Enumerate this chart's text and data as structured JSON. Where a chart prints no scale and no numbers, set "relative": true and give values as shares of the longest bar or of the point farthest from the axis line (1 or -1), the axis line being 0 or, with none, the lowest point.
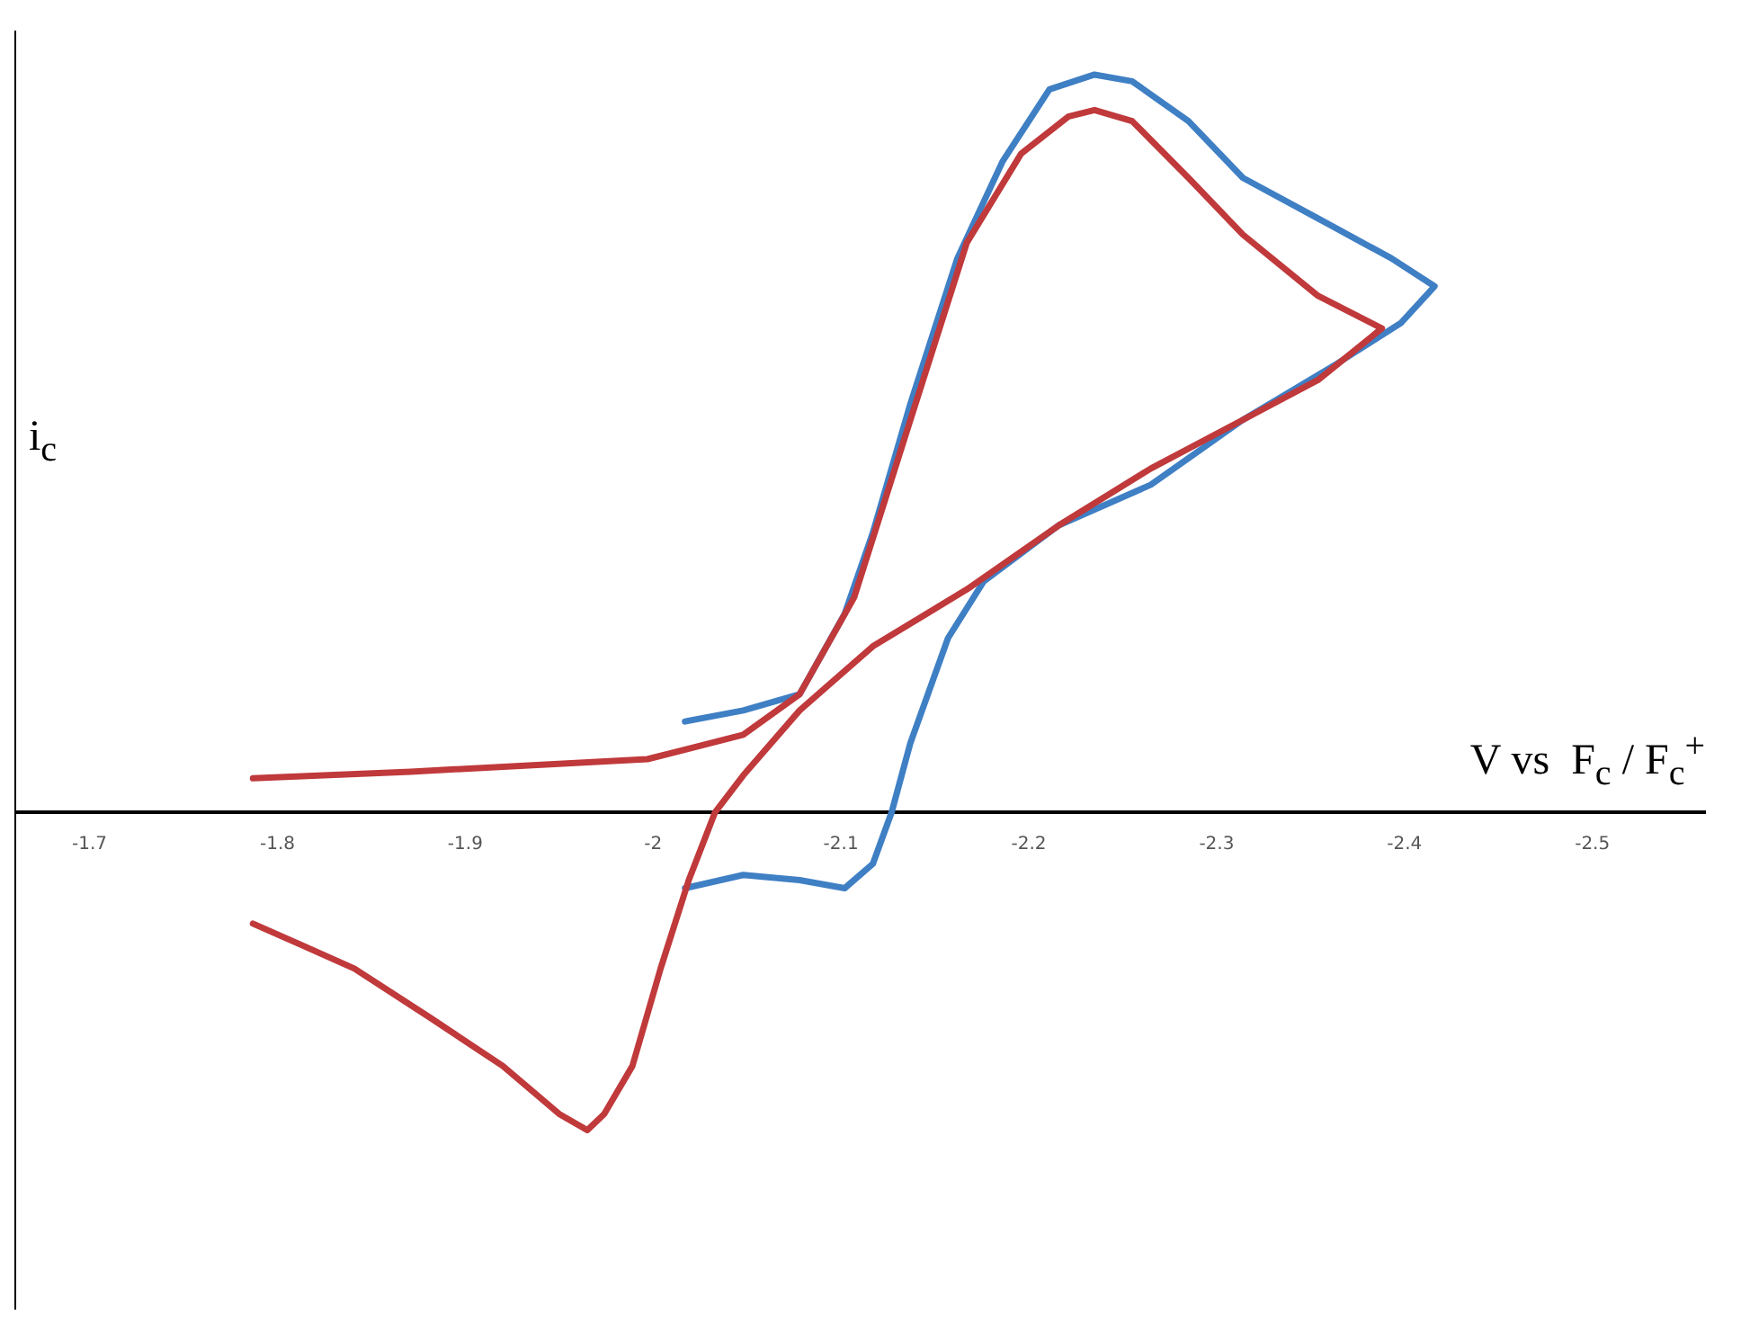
{
  "chart_data": {
    "type": "line",
    "xlabel": "V vs  F$_{c}$ / F$_{c}$$^{+}$",
    "relative": true,
    "xlim": [
      -1.66,
      -2.56
    ],
    "xticks": [
      -1.7,
      -1.8,
      -1.9,
      -2,
      -2.1,
      -2.2,
      -2.3,
      -2.4,
      -2.5
    ],
    "grid": false,
    "legend": false,
    "marker": "none",
    "ylabel": "i$_{c}$",
    "series": [
      {
        "color": "#c0393b",
        "x": [
          -1.787,
          -1.871,
          -1.997,
          -2.048,
          -2.078,
          -2.107,
          -2.137,
          -2.167,
          -2.196,
          -2.221,
          -2.235,
          -2.255,
          -2.285,
          -2.314,
          -2.354,
          -2.388,
          -2.354,
          -2.314,
          -2.265,
          -2.216,
          -2.167,
          -2.117,
          -2.078,
          -2.048,
          -2.033,
          -2.019,
          -2.004,
          -1.989,
          -1.974,
          -1.965,
          -1.95,
          -1.92,
          -1.881,
          -1.841,
          -1.812,
          -1.787
        ],
        "values": [
          0.046,
          0.055,
          0.072,
          0.105,
          0.16,
          0.291,
          0.532,
          0.772,
          0.893,
          0.943,
          0.952,
          0.937,
          0.86,
          0.783,
          0.7,
          0.656,
          0.586,
          0.532,
          0.466,
          0.389,
          0.302,
          0.225,
          0.138,
          0.05,
          0,
          -0.092,
          -0.212,
          -0.344,
          -0.409,
          -0.431,
          -0.409,
          -0.344,
          -0.278,
          -0.212,
          -0.179,
          -0.151
        ]
      },
      {
        "color": "#3f7fc4",
        "x": [
          -2.017,
          -2.048,
          -2.078,
          -2.102,
          -2.117,
          -2.137,
          -2.162,
          -2.186,
          -2.211,
          -2.235,
          -2.255,
          -2.285,
          -2.314,
          -2.354,
          -2.393,
          -2.416,
          -2.398,
          -2.364,
          -2.314,
          -2.265,
          -2.216,
          -2.176,
          -2.157,
          -2.137,
          -2.127,
          -2.117,
          -2.102,
          -2.078,
          -2.048,
          -2.017
        ],
        "values": [
          0.123,
          0.138,
          0.16,
          0.269,
          0.379,
          0.554,
          0.751,
          0.882,
          0.98,
          1,
          0.991,
          0.937,
          0.86,
          0.805,
          0.751,
          0.713,
          0.663,
          0.608,
          0.532,
          0.444,
          0.389,
          0.313,
          0.236,
          0.094,
          0,
          -0.07,
          -0.103,
          -0.092,
          -0.085,
          -0.103
        ]
      }
    ]
  }
}
